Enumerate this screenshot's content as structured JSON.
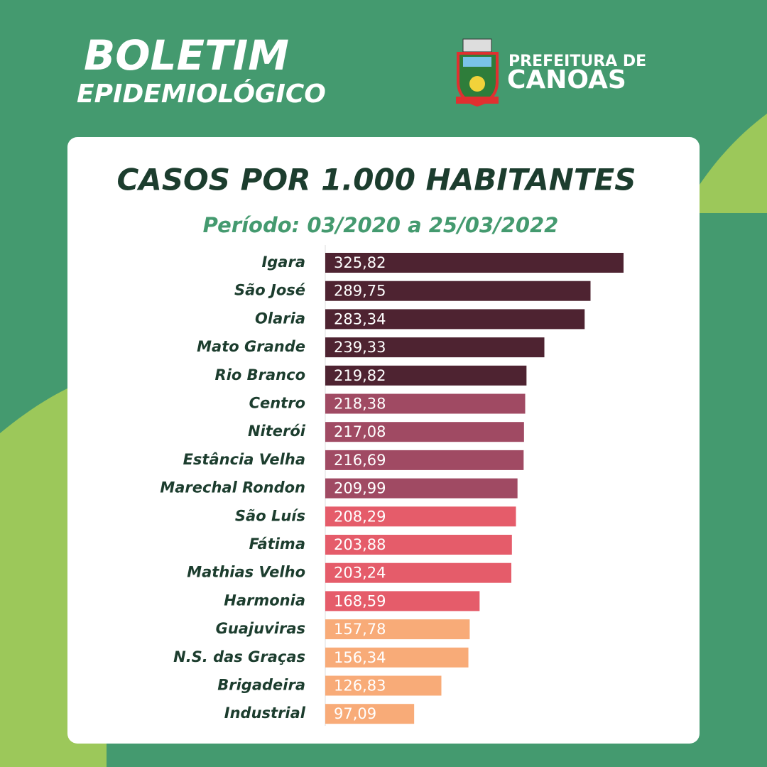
{
  "header": {
    "title": "BOLETIM",
    "subtitle": "EPIDEMIOLÓGICO",
    "org_line1": "PREFEITURA DE",
    "org_line2": "CANOAS"
  },
  "chart_data": {
    "type": "bar",
    "orientation": "horizontal",
    "title": "CASOS POR 1.000 HABITANTES",
    "subtitle": "Período: 03/2020 a 25/03/2022",
    "categories": [
      "Igara",
      "São José",
      "Olaria",
      "Mato Grande",
      "Rio Branco",
      "Centro",
      "Niterói",
      "Estância Velha",
      "Marechal Rondon",
      "São Luís",
      "Fátima",
      "Mathias Velho",
      "Harmonia",
      "Guajuviras",
      "N.S. das Graças",
      "Brigadeira",
      "Industrial"
    ],
    "values": [
      325.82,
      289.75,
      283.34,
      239.33,
      219.82,
      218.38,
      217.08,
      216.69,
      209.99,
      208.29,
      203.88,
      203.24,
      168.59,
      157.78,
      156.34,
      126.83,
      97.09
    ],
    "value_labels": [
      "325,82",
      "289,75",
      "283,34",
      "239,33",
      "219,82",
      "218,38",
      "217,08",
      "216,69",
      "209,99",
      "208,29",
      "203,88",
      "203,24",
      "168,59",
      "157,78",
      "156,34",
      "126,83",
      "97,09"
    ],
    "colors": [
      "#4e2331",
      "#4e2331",
      "#4e2331",
      "#4e2331",
      "#4e2331",
      "#a04a63",
      "#a04a63",
      "#a04a63",
      "#a04a63",
      "#e55c6a",
      "#e55c6a",
      "#e55c6a",
      "#e55c6a",
      "#f8ab78",
      "#f8ab78",
      "#f8ab78",
      "#f8ab78"
    ]
  }
}
